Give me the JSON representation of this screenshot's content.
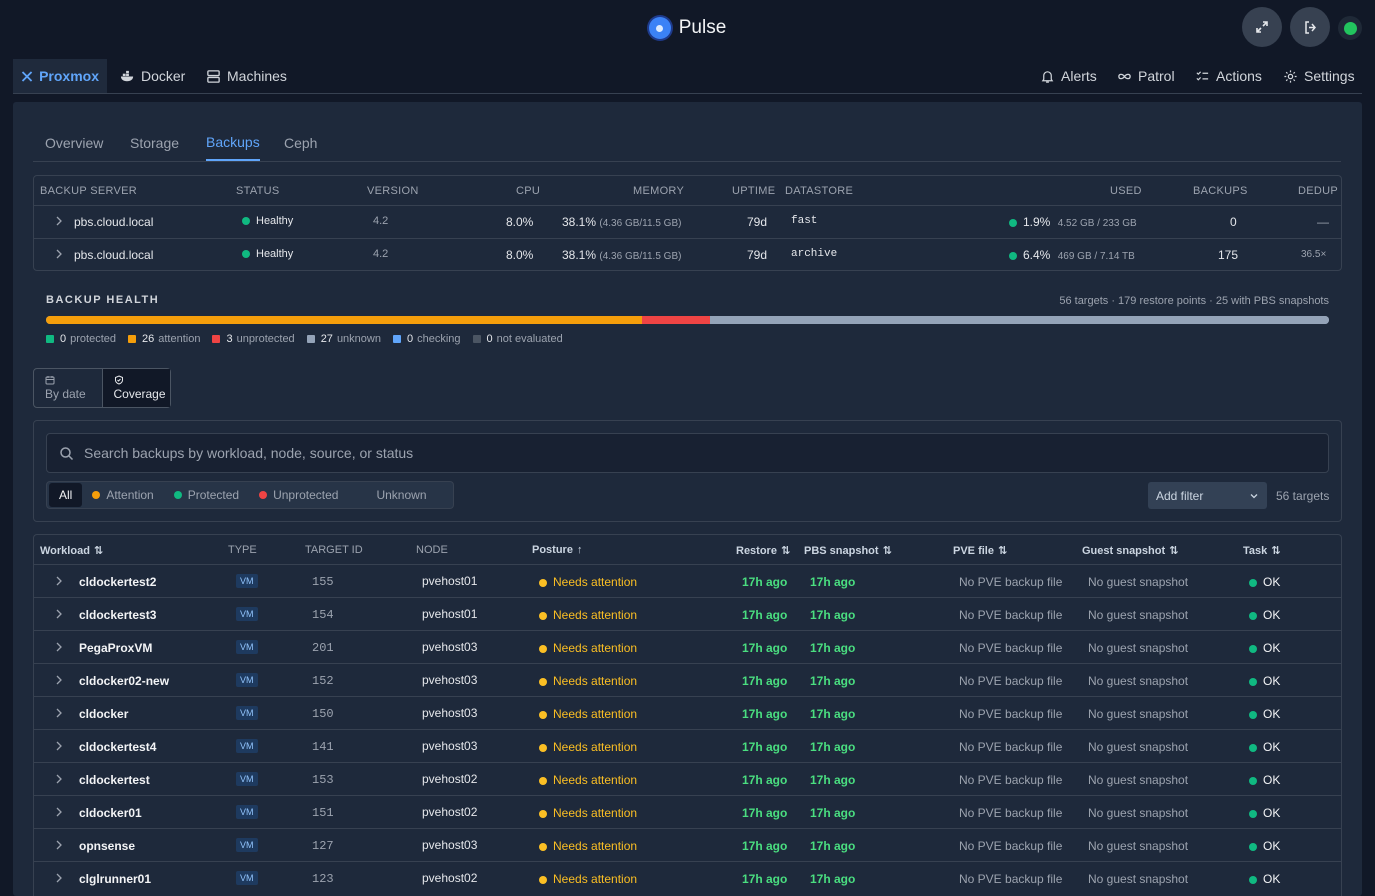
{
  "app": {
    "title": "Pulse"
  },
  "nav": {
    "left": [
      "Proxmox",
      "Docker",
      "Machines"
    ],
    "right": [
      "Alerts",
      "Patrol",
      "Actions",
      "Settings"
    ]
  },
  "subtabs": [
    "Overview",
    "Storage",
    "Backups",
    "Ceph"
  ],
  "servers": {
    "headers": [
      "BACKUP SERVER",
      "STATUS",
      "VERSION",
      "CPU",
      "MEMORY",
      "UPTIME",
      "DATASTORE",
      "USED",
      "BACKUPS",
      "DEDUP"
    ],
    "rows": [
      {
        "name": "pbs.cloud.local",
        "status": "Healthy",
        "version": "4.2",
        "cpu": "8.0%",
        "mem": "38.1%",
        "mem_detail": "(4.36 GB/11.5 GB)",
        "uptime": "79d",
        "datastore": "fast",
        "used": "1.9%",
        "used_detail": "4.52 GB / 233 GB",
        "backups": "0",
        "dedup": "—"
      },
      {
        "name": "pbs.cloud.local",
        "status": "Healthy",
        "version": "4.2",
        "cpu": "8.0%",
        "mem": "38.1%",
        "mem_detail": "(4.36 GB/11.5 GB)",
        "uptime": "79d",
        "datastore": "archive",
        "used": "6.4%",
        "used_detail": "469 GB / 7.14 TB",
        "backups": "175",
        "dedup": "36.5×"
      }
    ]
  },
  "health": {
    "title": "BACKUP HEALTH",
    "summary": "56 targets · 179 restore points · 25 with PBS snapshots",
    "bar": {
      "attention": 26,
      "unprotected": 3,
      "unknown": 27,
      "total": 56
    },
    "legend": [
      {
        "count": "0",
        "label": "protected",
        "color": "#10b981"
      },
      {
        "count": "26",
        "label": "attention",
        "color": "#f59e0b"
      },
      {
        "count": "3",
        "label": "unprotected",
        "color": "#ef4444"
      },
      {
        "count": "27",
        "label": "unknown",
        "color": "#94a3b8"
      },
      {
        "count": "0",
        "label": "checking",
        "color": "#60a5fa"
      },
      {
        "count": "0",
        "label": "not evaluated",
        "color": "#4b5563"
      }
    ]
  },
  "view_toggle": {
    "by_date": "By date",
    "coverage": "Coverage"
  },
  "search": {
    "placeholder": "Search backups by workload, node, source, or status"
  },
  "filters": [
    "All",
    "Attention",
    "Protected",
    "Unprotected",
    "Unknown"
  ],
  "add_filter": "Add filter",
  "target_count": "56 targets",
  "workloads": {
    "headers": [
      "Workload",
      "TYPE",
      "TARGET ID",
      "NODE",
      "Posture",
      "Restore",
      "PBS snapshot",
      "PVE file",
      "Guest snapshot",
      "Task"
    ],
    "rows": [
      {
        "name": "cldockertest2",
        "type": "VM",
        "id": "155",
        "node": "pvehost01",
        "posture": "Needs attention",
        "restore": "17h ago",
        "pbs": "17h ago",
        "pve": "No PVE backup file",
        "guest": "No guest snapshot",
        "task": "OK"
      },
      {
        "name": "cldockertest3",
        "type": "VM",
        "id": "154",
        "node": "pvehost01",
        "posture": "Needs attention",
        "restore": "17h ago",
        "pbs": "17h ago",
        "pve": "No PVE backup file",
        "guest": "No guest snapshot",
        "task": "OK"
      },
      {
        "name": "PegaProxVM",
        "type": "VM",
        "id": "201",
        "node": "pvehost03",
        "posture": "Needs attention",
        "restore": "17h ago",
        "pbs": "17h ago",
        "pve": "No PVE backup file",
        "guest": "No guest snapshot",
        "task": "OK"
      },
      {
        "name": "cldocker02-new",
        "type": "VM",
        "id": "152",
        "node": "pvehost03",
        "posture": "Needs attention",
        "restore": "17h ago",
        "pbs": "17h ago",
        "pve": "No PVE backup file",
        "guest": "No guest snapshot",
        "task": "OK"
      },
      {
        "name": "cldocker",
        "type": "VM",
        "id": "150",
        "node": "pvehost03",
        "posture": "Needs attention",
        "restore": "17h ago",
        "pbs": "17h ago",
        "pve": "No PVE backup file",
        "guest": "No guest snapshot",
        "task": "OK"
      },
      {
        "name": "cldockertest4",
        "type": "VM",
        "id": "141",
        "node": "pvehost03",
        "posture": "Needs attention",
        "restore": "17h ago",
        "pbs": "17h ago",
        "pve": "No PVE backup file",
        "guest": "No guest snapshot",
        "task": "OK"
      },
      {
        "name": "cldockertest",
        "type": "VM",
        "id": "153",
        "node": "pvehost02",
        "posture": "Needs attention",
        "restore": "17h ago",
        "pbs": "17h ago",
        "pve": "No PVE backup file",
        "guest": "No guest snapshot",
        "task": "OK"
      },
      {
        "name": "cldocker01",
        "type": "VM",
        "id": "151",
        "node": "pvehost02",
        "posture": "Needs attention",
        "restore": "17h ago",
        "pbs": "17h ago",
        "pve": "No PVE backup file",
        "guest": "No guest snapshot",
        "task": "OK"
      },
      {
        "name": "opnsense",
        "type": "VM",
        "id": "127",
        "node": "pvehost03",
        "posture": "Needs attention",
        "restore": "17h ago",
        "pbs": "17h ago",
        "pve": "No PVE backup file",
        "guest": "No guest snapshot",
        "task": "OK"
      },
      {
        "name": "clglrunner01",
        "type": "VM",
        "id": "123",
        "node": "pvehost02",
        "posture": "Needs attention",
        "restore": "17h ago",
        "pbs": "17h ago",
        "pve": "No PVE backup file",
        "guest": "No guest snapshot",
        "task": "OK"
      }
    ]
  }
}
